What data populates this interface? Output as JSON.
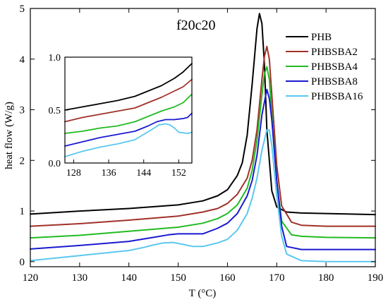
{
  "chart_data": [
    {
      "type": "line",
      "title": "f20c20",
      "xlabel": "T (°C)",
      "ylabel": "heat flow (W/g)",
      "xlim": [
        120,
        190
      ],
      "ylim": [
        -0.1,
        5.0
      ],
      "xticks": [
        120,
        130,
        140,
        150,
        160,
        170,
        180,
        190
      ],
      "yticks": [
        0,
        1,
        2,
        3,
        4,
        5
      ],
      "grid": false,
      "legend": "top-right",
      "series": [
        {
          "name": "PHB",
          "color": "#000000",
          "x": [
            120,
            130,
            140,
            150,
            155,
            158,
            160,
            162,
            163,
            164,
            165,
            166,
            166.5,
            167,
            167.5,
            168,
            169,
            170,
            172,
            175,
            180,
            190
          ],
          "y": [
            0.94,
            1.0,
            1.05,
            1.12,
            1.2,
            1.3,
            1.42,
            1.7,
            1.95,
            2.5,
            3.5,
            4.6,
            4.9,
            4.7,
            3.9,
            2.6,
            1.4,
            1.08,
            0.98,
            0.96,
            0.95,
            0.93
          ]
        },
        {
          "name": "PHBSBA2",
          "color": "#a0322a",
          "x": [
            120,
            130,
            140,
            150,
            155,
            158,
            160,
            162,
            164,
            165,
            166,
            167,
            167.5,
            168,
            168.5,
            169,
            170,
            171,
            173,
            175,
            180,
            190
          ],
          "y": [
            0.7,
            0.75,
            0.82,
            0.9,
            0.98,
            1.05,
            1.15,
            1.33,
            1.65,
            2.0,
            2.6,
            3.6,
            4.05,
            4.25,
            4.0,
            3.3,
            1.9,
            1.1,
            0.78,
            0.72,
            0.7,
            0.7
          ]
        },
        {
          "name": "PHBSBA4",
          "color": "#22bb22",
          "x": [
            120,
            130,
            140,
            150,
            155,
            158,
            160,
            162,
            164,
            165,
            166,
            167,
            167.5,
            168,
            168.5,
            169,
            170,
            171,
            173,
            175,
            180,
            190
          ],
          "y": [
            0.47,
            0.52,
            0.6,
            0.68,
            0.76,
            0.85,
            0.95,
            1.12,
            1.45,
            1.8,
            2.4,
            3.3,
            3.7,
            3.85,
            3.6,
            2.9,
            1.6,
            0.8,
            0.53,
            0.5,
            0.48,
            0.47
          ]
        },
        {
          "name": "PHBSBA8",
          "color": "#1a1ad0",
          "x": [
            120,
            130,
            140,
            145,
            148,
            150,
            152,
            155,
            158,
            160,
            162,
            164,
            165,
            166,
            167,
            168,
            168.5,
            169,
            170,
            171,
            172,
            175,
            180,
            190
          ],
          "y": [
            0.25,
            0.32,
            0.4,
            0.48,
            0.53,
            0.55,
            0.55,
            0.55,
            0.66,
            0.76,
            0.95,
            1.3,
            1.6,
            2.1,
            2.9,
            3.4,
            3.22,
            2.8,
            1.6,
            0.7,
            0.3,
            0.24,
            0.24,
            0.24
          ]
        },
        {
          "name": "PHBSBA16",
          "color": "#5ac8ee",
          "x": [
            120,
            130,
            135,
            140,
            143,
            145,
            147,
            149,
            151,
            153,
            155,
            158,
            160,
            162,
            164,
            165,
            166,
            167,
            168,
            168.5,
            169,
            170,
            171,
            172,
            175,
            180,
            190
          ],
          "y": [
            0.02,
            0.12,
            0.17,
            0.22,
            0.28,
            0.33,
            0.37,
            0.38,
            0.34,
            0.3,
            0.3,
            0.37,
            0.44,
            0.62,
            0.95,
            1.25,
            1.65,
            2.2,
            2.6,
            2.6,
            2.3,
            1.3,
            0.5,
            0.15,
            0.02,
            0.0,
            0.0
          ]
        }
      ]
    },
    {
      "type": "line",
      "title": "",
      "xlim": [
        126,
        155
      ],
      "ylim": [
        0.0,
        1.0
      ],
      "xticks": [
        128,
        136,
        144,
        152
      ],
      "yticks": [
        0.0,
        0.5,
        1.0
      ],
      "grid": false,
      "series": [
        {
          "color": "#000000",
          "x": [
            126,
            130,
            134,
            138,
            142,
            145,
            148,
            151,
            153,
            155
          ],
          "y": [
            0.5,
            0.53,
            0.56,
            0.59,
            0.63,
            0.68,
            0.73,
            0.8,
            0.86,
            0.94
          ]
        },
        {
          "color": "#a0322a",
          "x": [
            126,
            130,
            134,
            138,
            142,
            145,
            148,
            151,
            153,
            155
          ],
          "y": [
            0.39,
            0.43,
            0.46,
            0.49,
            0.52,
            0.57,
            0.62,
            0.68,
            0.72,
            0.79
          ]
        },
        {
          "color": "#22bb22",
          "x": [
            126,
            130,
            134,
            138,
            142,
            145,
            148,
            151,
            153,
            155
          ],
          "y": [
            0.28,
            0.3,
            0.33,
            0.35,
            0.39,
            0.44,
            0.49,
            0.53,
            0.57,
            0.65
          ]
        },
        {
          "color": "#1a1ad0",
          "x": [
            126,
            130,
            134,
            138,
            142,
            145,
            147,
            149,
            151,
            153,
            154,
            155
          ],
          "y": [
            0.16,
            0.2,
            0.24,
            0.27,
            0.3,
            0.35,
            0.39,
            0.41,
            0.41,
            0.42,
            0.43,
            0.47
          ]
        },
        {
          "color": "#5ac8ee",
          "x": [
            126,
            130,
            134,
            138,
            142,
            144,
            146,
            147.5,
            149,
            150,
            151,
            152,
            154,
            155
          ],
          "y": [
            0.06,
            0.11,
            0.15,
            0.18,
            0.22,
            0.27,
            0.32,
            0.36,
            0.37,
            0.36,
            0.33,
            0.29,
            0.28,
            0.29
          ]
        }
      ]
    }
  ]
}
